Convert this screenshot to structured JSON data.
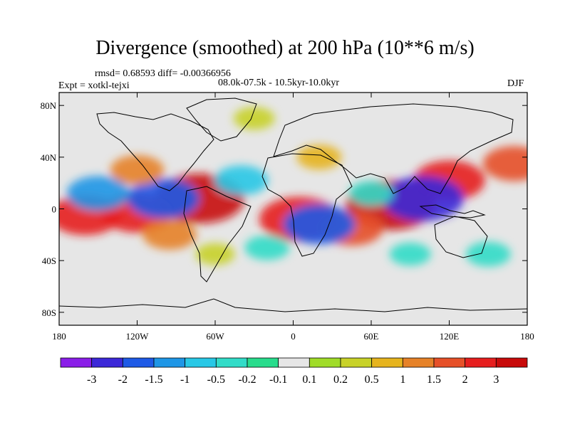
{
  "figure": {
    "title": "Divergence (smoothed) at 200 hPa (10**6 m/s)",
    "stats": "rmsd= 0.68593 diff= -0.00366956",
    "experiment": "Expt = xotkl-tejxi",
    "period": "08.0k-07.5k - 10.5kyr-10.0kyr",
    "season": "DJF"
  },
  "axes": {
    "x_ticks": [
      {
        "value": -180,
        "label": "180"
      },
      {
        "value": -120,
        "label": "120W"
      },
      {
        "value": -60,
        "label": "60W"
      },
      {
        "value": 0,
        "label": "0"
      },
      {
        "value": 60,
        "label": "60E"
      },
      {
        "value": 120,
        "label": "120E"
      },
      {
        "value": 180,
        "label": "180"
      }
    ],
    "y_ticks": [
      {
        "value": 80,
        "label": "80N"
      },
      {
        "value": 40,
        "label": "40N"
      },
      {
        "value": 0,
        "label": "0"
      },
      {
        "value": -40,
        "label": "40S"
      },
      {
        "value": -80,
        "label": "80S"
      }
    ],
    "lon_range": [
      -180,
      180
    ],
    "lat_range": [
      -90,
      90
    ]
  },
  "colorbar": {
    "labels": [
      "-3",
      "-2",
      "-1.5",
      "-1",
      "-0.5",
      "-0.2",
      "-0.1",
      "0.1",
      "0.2",
      "0.5",
      "1",
      "1.5",
      "2",
      "3"
    ],
    "levels": [
      -3,
      -2,
      -1.5,
      -1,
      -0.5,
      -0.2,
      -0.1,
      0.1,
      0.2,
      0.5,
      1,
      1.5,
      2,
      3
    ],
    "colors": [
      "#8a1ee8",
      "#3c28d8",
      "#1e5ae6",
      "#1e96e6",
      "#28c8e6",
      "#32dcc8",
      "#28dc8c",
      "#e6e6e6",
      "#a0dc28",
      "#c8d228",
      "#e6b41e",
      "#e68228",
      "#e65028",
      "#e61e1e",
      "#c80a0a"
    ]
  },
  "field_features": [
    {
      "lon": -72,
      "lat": 8,
      "value": 3
    },
    {
      "lon": -120,
      "lat": -3,
      "value": 2
    },
    {
      "lon": 5,
      "lat": -8,
      "value": 2.5
    },
    {
      "lon": 75,
      "lat": 3,
      "value": 3
    },
    {
      "lon": 120,
      "lat": 22,
      "value": 2
    },
    {
      "lon": -160,
      "lat": -5,
      "value": 2
    },
    {
      "lon": 45,
      "lat": -15,
      "value": 1.5
    },
    {
      "lon": -95,
      "lat": -20,
      "value": 1
    },
    {
      "lon": -100,
      "lat": 8,
      "value": -2
    },
    {
      "lon": -150,
      "lat": 12,
      "value": -1.5
    },
    {
      "lon": 100,
      "lat": 8,
      "value": -2.5
    },
    {
      "lon": 20,
      "lat": -12,
      "value": -2
    },
    {
      "lon": -40,
      "lat": 22,
      "value": -1
    },
    {
      "lon": 60,
      "lat": 12,
      "value": -0.5
    },
    {
      "lon": -20,
      "lat": -30,
      "value": -0.5
    },
    {
      "lon": 150,
      "lat": -35,
      "value": -0.5
    },
    {
      "lon": -120,
      "lat": 30,
      "value": 1
    },
    {
      "lon": 20,
      "lat": 40,
      "value": 0.5
    },
    {
      "lon": -30,
      "lat": 70,
      "value": 0.3
    },
    {
      "lon": 90,
      "lat": -35,
      "value": -0.3
    },
    {
      "lon": -60,
      "lat": -35,
      "value": 0.2
    },
    {
      "lon": 170,
      "lat": 35,
      "value": 1.5
    }
  ]
}
